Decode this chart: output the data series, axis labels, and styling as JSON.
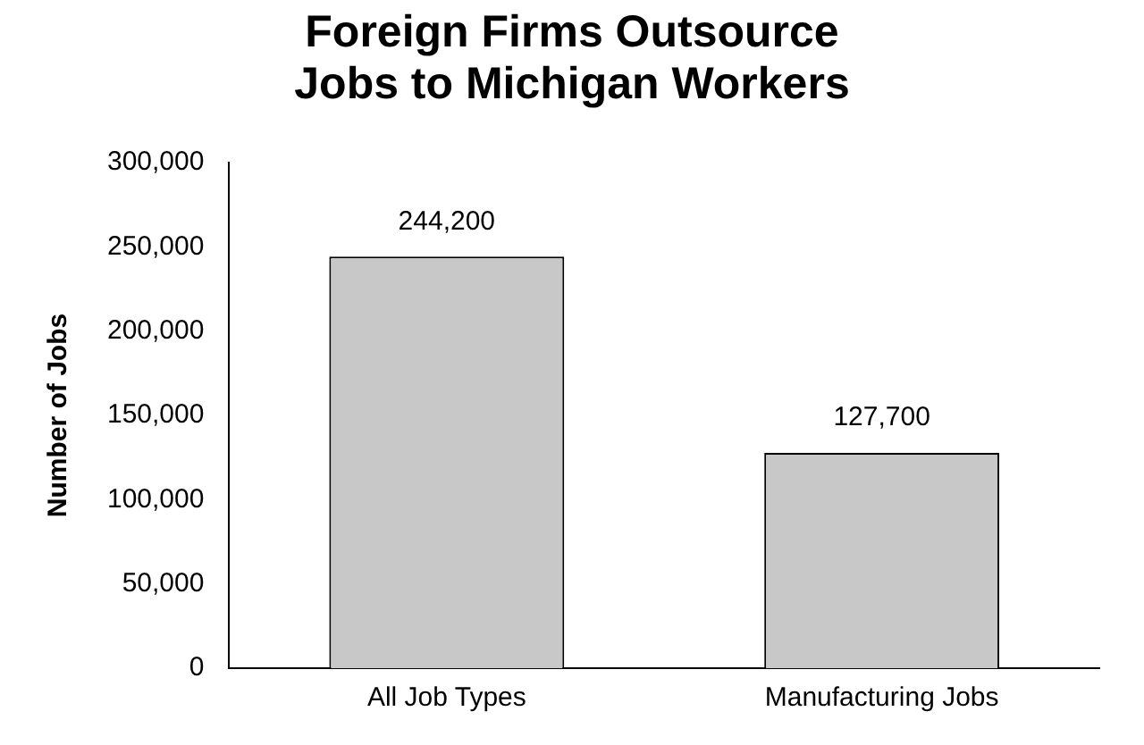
{
  "chart_data": {
    "type": "bar",
    "title": "Foreign Firms Outsource Jobs to Michigan Workers",
    "ylabel": "Number of Jobs",
    "categories": [
      "All Job Types",
      "Manufacturing Jobs"
    ],
    "values": [
      244200,
      127700
    ],
    "value_labels": [
      "244,200",
      "127,700"
    ],
    "color": "#c8c8c8",
    "ylim": [
      0,
      300000
    ],
    "yticks": [
      0,
      {
        "value": 50000,
        "label": "50,000"
      },
      {
        "value": 100000,
        "label": "100,000"
      },
      {
        "value": 150000,
        "label": "150,000"
      },
      {
        "value": 200000,
        "label": "200,000"
      },
      {
        "value": 250000,
        "label": "250,000"
      },
      {
        "value": 300000,
        "label": "300,000"
      }
    ],
    "grid": false,
    "legend": false
  }
}
